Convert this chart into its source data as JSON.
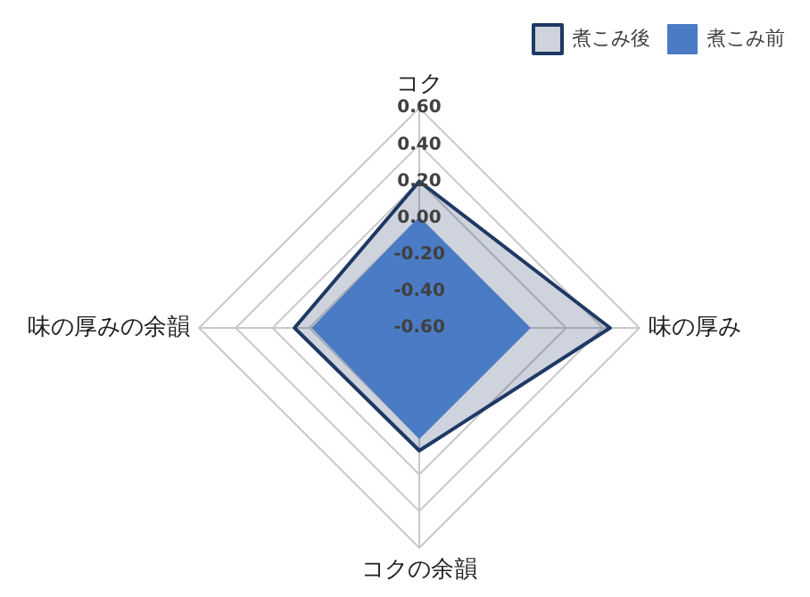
{
  "chart_data": {
    "type": "radar",
    "categories": [
      "コク",
      "味の厚み",
      "コクの余韻",
      "味の厚みの余韻"
    ],
    "series": [
      {
        "name": "煮こみ後",
        "color": "#1f3864",
        "values": [
          0.2,
          0.44,
          0.07,
          0.08
        ]
      },
      {
        "name": "煮こみ前",
        "color": "#4a7bc4",
        "values": [
          0.0,
          0.0,
          0.0,
          -0.02
        ]
      }
    ],
    "ylim": [
      -0.6,
      0.6
    ],
    "yticks": [
      {
        "value": -0.6,
        "label": "-0.60"
      },
      {
        "value": -0.4,
        "label": "-0.40"
      },
      {
        "value": -0.2,
        "label": "-0.20"
      },
      {
        "value": 0,
        "label": "0.00"
      },
      {
        "value": 0.2,
        "label": "0.20"
      },
      {
        "value": 0.4,
        "label": "0.40"
      },
      {
        "value": 0.6,
        "label": "0.60"
      }
    ],
    "grid": true,
    "legend": "top right",
    "marker": "none"
  }
}
